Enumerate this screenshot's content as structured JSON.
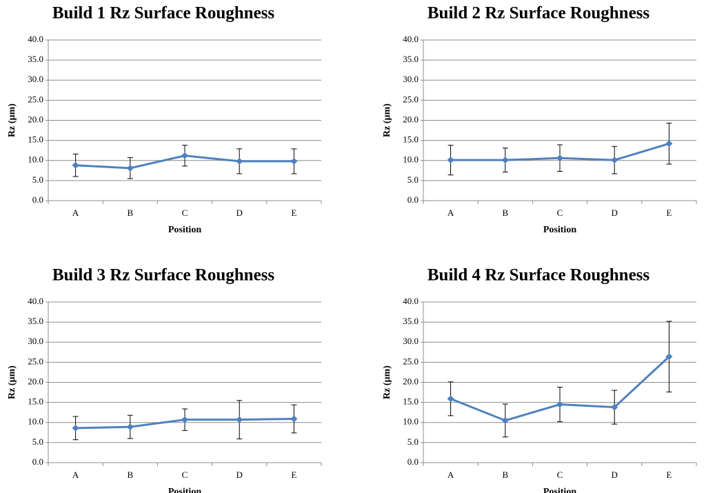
{
  "chart_data": [
    {
      "type": "line",
      "title": "Build 1 Rz Surface Roughness",
      "x_label": "Position",
      "y_label": "Rz (µm)",
      "categories": [
        "A",
        "B",
        "C",
        "D",
        "E"
      ],
      "values": [
        8.8,
        8.1,
        11.2,
        9.8,
        9.8
      ],
      "errors": [
        2.8,
        2.6,
        2.6,
        3.1,
        3.1
      ],
      "color": "#4f81bd",
      "ylim": [
        0,
        40
      ],
      "yticks": [
        {
          "value": 0,
          "label": "0.0"
        },
        {
          "value": 5,
          "label": "5.0"
        },
        {
          "value": 10,
          "label": "10.0"
        },
        {
          "value": 15,
          "label": "15.0"
        },
        {
          "value": 20,
          "label": "20.0"
        },
        {
          "value": 25,
          "label": "25.0"
        },
        {
          "value": 30,
          "label": "30.0"
        },
        {
          "value": 35,
          "label": "35.0"
        },
        {
          "value": 40,
          "label": "40.0"
        }
      ],
      "grid": true
    },
    {
      "type": "line",
      "title": "Build 2 Rz Surface Roughness",
      "x_label": "Position",
      "y_label": "Rz (µm)",
      "categories": [
        "A",
        "B",
        "C",
        "D",
        "E"
      ],
      "values": [
        10.1,
        10.1,
        10.6,
        10.1,
        14.2
      ],
      "errors": [
        3.7,
        3.0,
        3.3,
        3.4,
        5.1
      ],
      "color": "#4f81bd",
      "ylim": [
        0,
        40
      ],
      "yticks": [
        {
          "value": 0,
          "label": "0.0"
        },
        {
          "value": 5,
          "label": "5.0"
        },
        {
          "value": 10,
          "label": "10.0"
        },
        {
          "value": 15,
          "label": "15.0"
        },
        {
          "value": 20,
          "label": "20.0"
        },
        {
          "value": 25,
          "label": "25.0"
        },
        {
          "value": 30,
          "label": "30.0"
        },
        {
          "value": 35,
          "label": "35.0"
        },
        {
          "value": 40,
          "label": "40.0"
        }
      ],
      "grid": true
    },
    {
      "type": "line",
      "title": "Build 3 Rz Surface Roughness",
      "x_label": "Position",
      "y_label": "Rz (µm)",
      "categories": [
        "A",
        "B",
        "C",
        "D",
        "E"
      ],
      "values": [
        8.6,
        8.9,
        10.7,
        10.7,
        10.9
      ],
      "errors": [
        2.9,
        2.9,
        2.7,
        4.8,
        3.5
      ],
      "color": "#4f81bd",
      "ylim": [
        0,
        40
      ],
      "yticks": [
        {
          "value": 0,
          "label": "0.0"
        },
        {
          "value": 5,
          "label": "5.0"
        },
        {
          "value": 10,
          "label": "10.0"
        },
        {
          "value": 15,
          "label": "15.0"
        },
        {
          "value": 20,
          "label": "20.0"
        },
        {
          "value": 25,
          "label": "25.0"
        },
        {
          "value": 30,
          "label": "30.0"
        },
        {
          "value": 35,
          "label": "35.0"
        },
        {
          "value": 40,
          "label": "40.0"
        }
      ],
      "grid": true
    },
    {
      "type": "line",
      "title": "Build 4 Rz Surface Roughness",
      "x_label": "Position",
      "y_label": "Rz (µm)",
      "categories": [
        "A",
        "B",
        "C",
        "D",
        "E"
      ],
      "values": [
        15.9,
        10.5,
        14.5,
        13.8,
        26.4
      ],
      "errors": [
        4.2,
        4.1,
        4.3,
        4.2,
        8.8
      ],
      "color": "#4f81bd",
      "ylim": [
        0,
        40
      ],
      "yticks": [
        {
          "value": 0,
          "label": "0.0"
        },
        {
          "value": 5,
          "label": "5.0"
        },
        {
          "value": 10,
          "label": "10.0"
        },
        {
          "value": 15,
          "label": "15.0"
        },
        {
          "value": 20,
          "label": "20.0"
        },
        {
          "value": 25,
          "label": "25.0"
        },
        {
          "value": 30,
          "label": "30.0"
        },
        {
          "value": 35,
          "label": "35.0"
        },
        {
          "value": 40,
          "label": "40.0"
        }
      ],
      "grid": true
    }
  ]
}
